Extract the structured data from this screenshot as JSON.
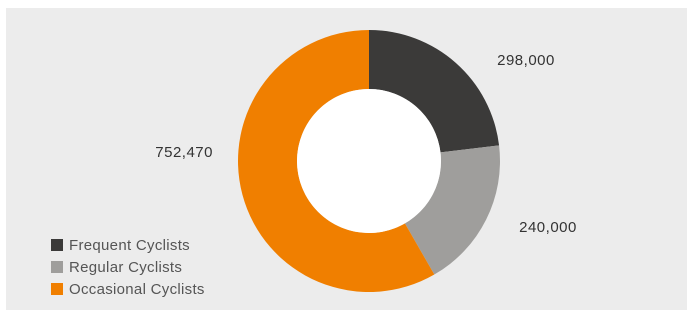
{
  "chart_data": {
    "type": "pie",
    "donut": true,
    "categories": [
      "Frequent Cyclists",
      "Regular Cyclists",
      "Occasional Cyclists"
    ],
    "values": [
      298000,
      240000,
      752470
    ],
    "value_labels": [
      "298,000",
      "240,000",
      "752,470"
    ],
    "colors": [
      "#3b3a39",
      "#9f9e9c",
      "#f07f00"
    ],
    "legend_position": "bottom-left"
  }
}
